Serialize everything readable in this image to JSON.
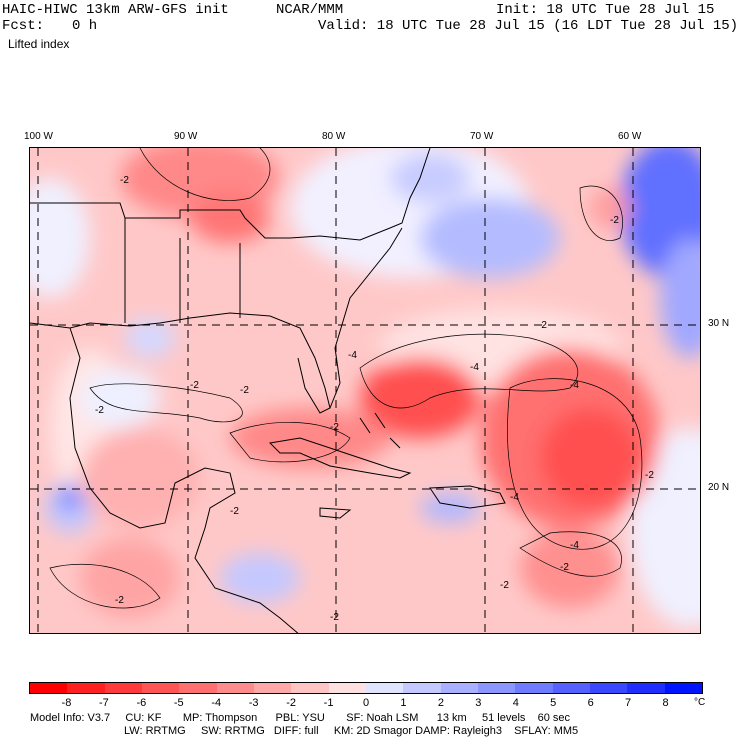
{
  "header": {
    "model_title": "HAIC-HIWC 13km ARW-GFS init",
    "org": "NCAR/MMM",
    "init": "Init: 18 UTC Tue 28 Jul 15",
    "fcst_label": "Fcst:",
    "fcst_value": "0 h",
    "valid": "Valid: 18 UTC Tue 28 Jul 15 (16 LDT Tue 28 Jul 15)",
    "field": "Lifted index"
  },
  "map": {
    "lon_labels": [
      "100 W",
      "90 W",
      "80 W",
      "70 W",
      "60 W"
    ],
    "lat_labels": [
      "30 N",
      "20 N"
    ],
    "contour_labels": [
      "-2",
      "-4"
    ]
  },
  "colorbar": {
    "ticks": [
      "-8",
      "-7",
      "-6",
      "-5",
      "-4",
      "-3",
      "-2",
      "-1",
      "0",
      "1",
      "2",
      "3",
      "4",
      "5",
      "6",
      "7",
      "8"
    ],
    "unit": "°C",
    "colors": [
      "#ff0000",
      "#ff2020",
      "#ff3a3a",
      "#ff5555",
      "#ff7070",
      "#ff8c8c",
      "#ffa8a8",
      "#ffc4c4",
      "#ffe0e0",
      "#e0e4ff",
      "#c4caff",
      "#a8b0ff",
      "#8c96ff",
      "#707cff",
      "#5562ff",
      "#3a48ff",
      "#202eff",
      "#0014ff"
    ]
  },
  "info": {
    "line1": "Model Info: V3.7     CU: KF       MP: Thompson      PBL: YSU       SF: Noah LSM      13 km     51 levels    60 sec",
    "line2": "LW: RRTMG     SW: RRTMG   DIFF: full     KM: 2D Smagor DAMP: Rayleigh3    SFLAY: MM5"
  }
}
